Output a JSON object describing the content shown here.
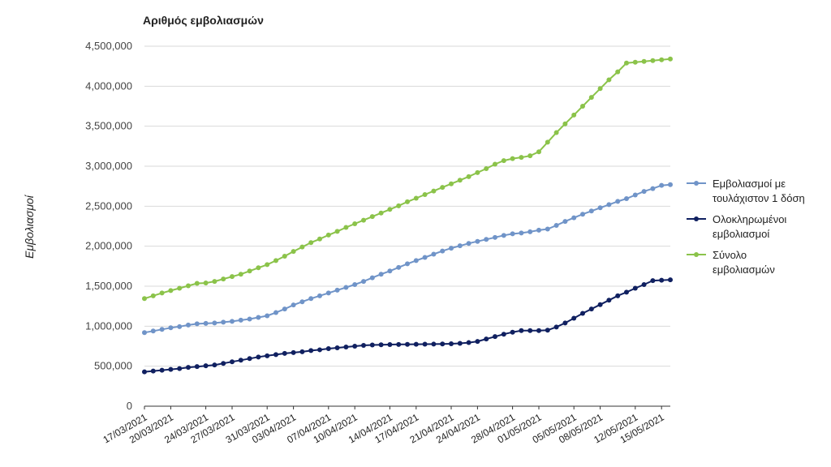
{
  "chart_data": {
    "type": "line",
    "title": "Αριθμός εμβολιασμών",
    "xlabel": "",
    "ylabel": "Εμβολιασμοί",
    "ylim": [
      0,
      4500000
    ],
    "yticks": [
      "0",
      "500,000",
      "1,000,000",
      "1,500,000",
      "2,000,000",
      "2,500,000",
      "3,000,000",
      "3,500,000",
      "4,000,000",
      "4,500,000"
    ],
    "grid": "horizontal",
    "legend_position": "right",
    "x_tick_labels": [
      "17/03/2021",
      "20/03/2021",
      "24/03/2021",
      "27/03/2021",
      "31/03/2021",
      "03/04/2021",
      "07/04/2021",
      "10/04/2021",
      "14/04/2021",
      "17/04/2021",
      "21/04/2021",
      "24/04/2021",
      "28/04/2021",
      "01/05/2021",
      "05/05/2021",
      "08/05/2021",
      "12/05/2021",
      "15/05/2021"
    ],
    "x": [
      "17/03/2021",
      "18/03/2021",
      "19/03/2021",
      "20/03/2021",
      "21/03/2021",
      "22/03/2021",
      "23/03/2021",
      "24/03/2021",
      "25/03/2021",
      "26/03/2021",
      "27/03/2021",
      "28/03/2021",
      "29/03/2021",
      "30/03/2021",
      "31/03/2021",
      "01/04/2021",
      "02/04/2021",
      "03/04/2021",
      "04/04/2021",
      "05/04/2021",
      "06/04/2021",
      "07/04/2021",
      "08/04/2021",
      "09/04/2021",
      "10/04/2021",
      "11/04/2021",
      "12/04/2021",
      "13/04/2021",
      "14/04/2021",
      "15/04/2021",
      "16/04/2021",
      "17/04/2021",
      "18/04/2021",
      "19/04/2021",
      "20/04/2021",
      "21/04/2021",
      "22/04/2021",
      "23/04/2021",
      "24/04/2021",
      "25/04/2021",
      "26/04/2021",
      "27/04/2021",
      "28/04/2021",
      "29/04/2021",
      "30/04/2021",
      "01/05/2021",
      "02/05/2021",
      "03/05/2021",
      "04/05/2021",
      "05/05/2021",
      "06/05/2021",
      "07/05/2021",
      "08/05/2021",
      "09/05/2021",
      "10/05/2021",
      "11/05/2021",
      "12/05/2021",
      "13/05/2021",
      "14/05/2021",
      "15/05/2021",
      "16/05/2021"
    ],
    "series": [
      {
        "name": "Εμβολιασμοί με τουλάχιστον 1 δόση",
        "color": "#7094c8",
        "values": [
          920000,
          940000,
          960000,
          980000,
          995000,
          1015000,
          1030000,
          1035000,
          1040000,
          1050000,
          1060000,
          1075000,
          1090000,
          1110000,
          1130000,
          1170000,
          1215000,
          1265000,
          1305000,
          1345000,
          1380000,
          1415000,
          1450000,
          1485000,
          1520000,
          1560000,
          1605000,
          1650000,
          1690000,
          1735000,
          1780000,
          1820000,
          1860000,
          1900000,
          1940000,
          1975000,
          2005000,
          2035000,
          2060000,
          2085000,
          2110000,
          2135000,
          2155000,
          2165000,
          2180000,
          2200000,
          2215000,
          2260000,
          2310000,
          2355000,
          2400000,
          2440000,
          2480000,
          2520000,
          2560000,
          2595000,
          2640000,
          2685000,
          2720000,
          2760000,
          2770000
        ]
      },
      {
        "name": "Ολοκληρωμένοι εμβολιασμοί",
        "color": "#102060",
        "values": [
          430000,
          440000,
          450000,
          460000,
          470000,
          485000,
          495000,
          505000,
          515000,
          535000,
          555000,
          575000,
          595000,
          615000,
          630000,
          645000,
          660000,
          670000,
          680000,
          695000,
          705000,
          720000,
          730000,
          740000,
          750000,
          760000,
          765000,
          768000,
          770000,
          772000,
          773000,
          774000,
          775000,
          776000,
          778000,
          780000,
          785000,
          795000,
          810000,
          840000,
          870000,
          900000,
          925000,
          945000,
          945000,
          945000,
          950000,
          990000,
          1040000,
          1100000,
          1160000,
          1215000,
          1270000,
          1325000,
          1380000,
          1425000,
          1475000,
          1520000,
          1570000,
          1575000,
          1580000
        ]
      },
      {
        "name": "Σύνολο εμβολιασμών",
        "color": "#8bc34a",
        "values": [
          1345000,
          1380000,
          1415000,
          1445000,
          1475000,
          1505000,
          1535000,
          1540000,
          1560000,
          1590000,
          1620000,
          1650000,
          1690000,
          1730000,
          1770000,
          1820000,
          1875000,
          1935000,
          1990000,
          2045000,
          2090000,
          2140000,
          2185000,
          2235000,
          2280000,
          2325000,
          2370000,
          2415000,
          2460000,
          2505000,
          2555000,
          2600000,
          2645000,
          2690000,
          2735000,
          2780000,
          2825000,
          2870000,
          2920000,
          2970000,
          3025000,
          3070000,
          3095000,
          3110000,
          3130000,
          3180000,
          3300000,
          3420000,
          3530000,
          3640000,
          3750000,
          3860000,
          3970000,
          4080000,
          4180000,
          4290000,
          4300000,
          4310000,
          4320000,
          4330000,
          4340000
        ]
      }
    ]
  }
}
